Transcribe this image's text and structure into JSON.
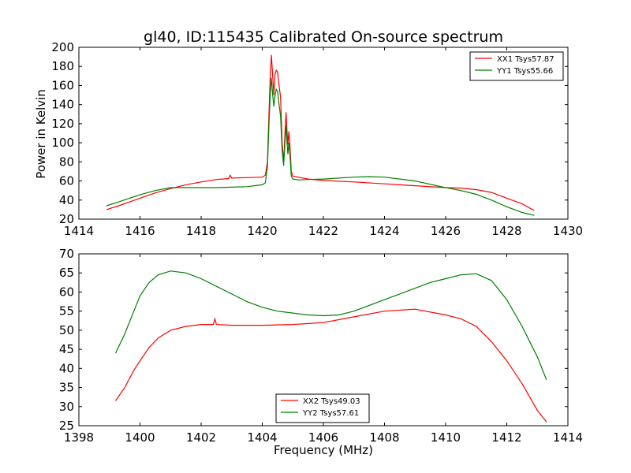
{
  "chart_data": [
    {
      "type": "line",
      "title": "gl40, ID:115435 Calibrated On-source spectrum",
      "xlabel": "",
      "ylabel": "Power in Kelvin",
      "xlim": [
        1414,
        1430
      ],
      "ylim": [
        20,
        200
      ],
      "xticks": [
        "1414",
        "1416",
        "1418",
        "1420",
        "1422",
        "1424",
        "1426",
        "1428",
        "1430"
      ],
      "yticks": [
        "20",
        "40",
        "60",
        "80",
        "100",
        "120",
        "140",
        "160",
        "180",
        "200"
      ],
      "legend_position": "top-right",
      "series": [
        {
          "name": "XX1 Tsys57.87",
          "color": "#ff0000",
          "points": [
            [
              1414.9,
              30
            ],
            [
              1415.3,
              34
            ],
            [
              1415.7,
              38.5
            ],
            [
              1416.1,
              43
            ],
            [
              1416.5,
              47.5
            ],
            [
              1417.0,
              52
            ],
            [
              1417.5,
              56
            ],
            [
              1418.0,
              59
            ],
            [
              1418.5,
              61.5
            ],
            [
              1418.9,
              62.5
            ],
            [
              1418.95,
              66
            ],
            [
              1419.0,
              63
            ],
            [
              1419.5,
              63.5
            ],
            [
              1420.0,
              64
            ],
            [
              1420.1,
              66
            ],
            [
              1420.17,
              80
            ],
            [
              1420.22,
              130
            ],
            [
              1420.26,
              170
            ],
            [
              1420.3,
              192
            ],
            [
              1420.34,
              170
            ],
            [
              1420.38,
              150
            ],
            [
              1420.42,
              172
            ],
            [
              1420.46,
              176
            ],
            [
              1420.5,
              174
            ],
            [
              1420.55,
              160
            ],
            [
              1420.6,
              148
            ],
            [
              1420.65,
              100
            ],
            [
              1420.7,
              80
            ],
            [
              1420.75,
              115
            ],
            [
              1420.78,
              132
            ],
            [
              1420.81,
              112
            ],
            [
              1420.84,
              98
            ],
            [
              1420.87,
              112
            ],
            [
              1420.9,
              100
            ],
            [
              1420.95,
              70
            ],
            [
              1421.0,
              65
            ],
            [
              1421.5,
              62
            ],
            [
              1422.0,
              60.5
            ],
            [
              1423.0,
              59
            ],
            [
              1424.0,
              57
            ],
            [
              1425.0,
              55
            ],
            [
              1426.0,
              53
            ],
            [
              1426.5,
              52.5
            ],
            [
              1427.0,
              51
            ],
            [
              1427.5,
              48
            ],
            [
              1428.0,
              42
            ],
            [
              1428.5,
              36
            ],
            [
              1428.9,
              29
            ]
          ]
        },
        {
          "name": "YY1 Tsys55.66",
          "color": "#008000",
          "points": [
            [
              1414.9,
              34
            ],
            [
              1415.3,
              38
            ],
            [
              1415.7,
              42.5
            ],
            [
              1416.1,
              46.5
            ],
            [
              1416.5,
              50
            ],
            [
              1417.0,
              53
            ],
            [
              1417.5,
              53
            ],
            [
              1418.0,
              53
            ],
            [
              1418.5,
              53
            ],
            [
              1419.0,
              53.5
            ],
            [
              1419.5,
              54
            ],
            [
              1420.0,
              56
            ],
            [
              1420.1,
              58
            ],
            [
              1420.17,
              75
            ],
            [
              1420.22,
              120
            ],
            [
              1420.26,
              150
            ],
            [
              1420.3,
              168
            ],
            [
              1420.34,
              150
            ],
            [
              1420.38,
              138
            ],
            [
              1420.42,
              150
            ],
            [
              1420.46,
              156
            ],
            [
              1420.5,
              154
            ],
            [
              1420.55,
              140
            ],
            [
              1420.6,
              128
            ],
            [
              1420.65,
              92
            ],
            [
              1420.7,
              76
            ],
            [
              1420.75,
              105
            ],
            [
              1420.78,
              118
            ],
            [
              1420.81,
              100
            ],
            [
              1420.84,
              88
            ],
            [
              1420.87,
              100
            ],
            [
              1420.9,
              90
            ],
            [
              1420.95,
              65
            ],
            [
              1421.0,
              62
            ],
            [
              1421.2,
              61
            ],
            [
              1421.5,
              61.5
            ],
            [
              1422.0,
              62
            ],
            [
              1423.0,
              64
            ],
            [
              1423.5,
              64.5
            ],
            [
              1424.0,
              64
            ],
            [
              1425.0,
              60
            ],
            [
              1426.0,
              53
            ],
            [
              1426.5,
              50
            ],
            [
              1427.0,
              46
            ],
            [
              1427.5,
              40
            ],
            [
              1428.0,
              33
            ],
            [
              1428.5,
              27
            ],
            [
              1428.9,
              24
            ]
          ]
        }
      ]
    },
    {
      "type": "line",
      "title": "",
      "xlabel": "Frequency (MHz)",
      "ylabel": "",
      "xlim": [
        1398,
        1414
      ],
      "ylim": [
        25,
        70
      ],
      "xticks": [
        "1398",
        "1400",
        "1402",
        "1404",
        "1406",
        "1408",
        "1410",
        "1412",
        "1414"
      ],
      "yticks": [
        "25",
        "30",
        "35",
        "40",
        "45",
        "50",
        "55",
        "60",
        "65",
        "70"
      ],
      "legend_position": "bottom-center",
      "series": [
        {
          "name": "XX2 Tsys49.03",
          "color": "#ff0000",
          "points": [
            [
              1399.2,
              31.5
            ],
            [
              1399.5,
              35
            ],
            [
              1399.8,
              39.5
            ],
            [
              1400.0,
              42
            ],
            [
              1400.3,
              45.5
            ],
            [
              1400.6,
              48
            ],
            [
              1401.0,
              50
            ],
            [
              1401.5,
              51
            ],
            [
              1402.0,
              51.5
            ],
            [
              1402.4,
              51.5
            ],
            [
              1402.45,
              53
            ],
            [
              1402.5,
              51.5
            ],
            [
              1403.0,
              51.3
            ],
            [
              1404.0,
              51.3
            ],
            [
              1405.0,
              51.5
            ],
            [
              1406.0,
              52
            ],
            [
              1407.0,
              53.5
            ],
            [
              1408.0,
              55
            ],
            [
              1409.0,
              55.5
            ],
            [
              1410.0,
              54
            ],
            [
              1410.5,
              53
            ],
            [
              1411.0,
              51
            ],
            [
              1411.5,
              47
            ],
            [
              1412.0,
              42
            ],
            [
              1412.5,
              36
            ],
            [
              1413.0,
              29
            ],
            [
              1413.3,
              26
            ]
          ]
        },
        {
          "name": "YY2 Tsys57.61",
          "color": "#008000",
          "points": [
            [
              1399.2,
              44
            ],
            [
              1399.5,
              49
            ],
            [
              1399.8,
              55
            ],
            [
              1400.0,
              59
            ],
            [
              1400.3,
              62.5
            ],
            [
              1400.6,
              64.5
            ],
            [
              1401.0,
              65.5
            ],
            [
              1401.5,
              65
            ],
            [
              1402.0,
              63.5
            ],
            [
              1402.5,
              61.5
            ],
            [
              1403.0,
              59.5
            ],
            [
              1403.5,
              57.5
            ],
            [
              1404.0,
              56
            ],
            [
              1404.5,
              55
            ],
            [
              1405.0,
              54.5
            ],
            [
              1405.5,
              54
            ],
            [
              1406.0,
              53.8
            ],
            [
              1406.5,
              54
            ],
            [
              1407.0,
              55
            ],
            [
              1407.5,
              56.5
            ],
            [
              1408.0,
              58
            ],
            [
              1408.5,
              59.5
            ],
            [
              1409.0,
              61
            ],
            [
              1409.5,
              62.5
            ],
            [
              1410.0,
              63.5
            ],
            [
              1410.5,
              64.5
            ],
            [
              1411.0,
              64.8
            ],
            [
              1411.5,
              63
            ],
            [
              1412.0,
              58
            ],
            [
              1412.5,
              51
            ],
            [
              1413.0,
              43
            ],
            [
              1413.3,
              37
            ]
          ]
        }
      ]
    }
  ]
}
